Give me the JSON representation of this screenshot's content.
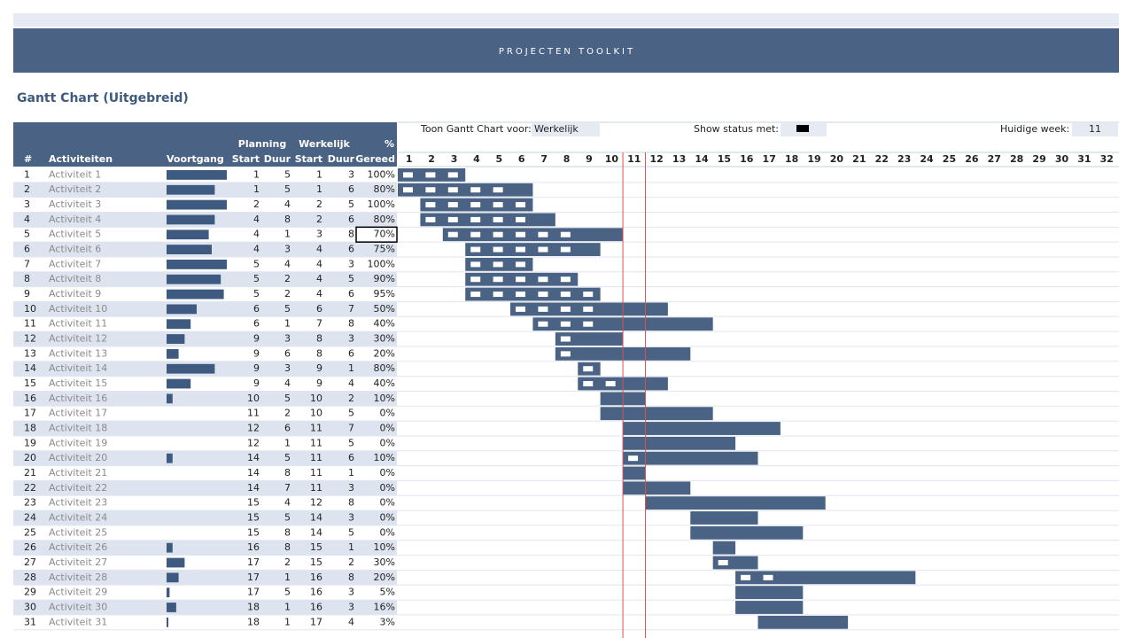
{
  "header": {
    "title": "PROJECTEN TOOLKIT",
    "subtitle": "Gantt Chart (Uitgebreid)"
  },
  "controls": {
    "show_for_label": "Toon Gantt Chart voor:",
    "show_for_value": "Werkelijk",
    "status_label": "Show status met:",
    "week_label": "Huidige week:",
    "current_week": 11
  },
  "table": {
    "group_headers": {
      "planning": "Planning",
      "werkelijk": "Werkelijk",
      "pct": "%"
    },
    "columns": [
      "#",
      "Activiteiten",
      "Voortgang",
      "Start",
      "Duur",
      "Start",
      "Duur",
      "Gereed"
    ],
    "weeks": [
      1,
      2,
      3,
      4,
      5,
      6,
      7,
      8,
      9,
      10,
      11,
      12,
      13,
      14,
      15,
      16,
      17,
      18,
      19,
      20,
      21,
      22,
      23,
      24,
      25,
      26,
      27,
      28,
      29,
      30,
      31,
      32
    ],
    "rows": [
      {
        "n": 1,
        "name": "Activiteit 1",
        "plan_start": 1,
        "plan_duur": 5,
        "start": 1,
        "duur": 3,
        "gereed": 100,
        "gereed_label": "100%"
      },
      {
        "n": 2,
        "name": "Activiteit 2",
        "plan_start": 1,
        "plan_duur": 5,
        "start": 1,
        "duur": 6,
        "gereed": 80,
        "gereed_label": "80%"
      },
      {
        "n": 3,
        "name": "Activiteit 3",
        "plan_start": 2,
        "plan_duur": 4,
        "start": 2,
        "duur": 5,
        "gereed": 100,
        "gereed_label": "100%"
      },
      {
        "n": 4,
        "name": "Activiteit 4",
        "plan_start": 4,
        "plan_duur": 8,
        "start": 2,
        "duur": 6,
        "gereed": 80,
        "gereed_label": "80%"
      },
      {
        "n": 5,
        "name": "Activiteit 5",
        "plan_start": 4,
        "plan_duur": 1,
        "start": 3,
        "duur": 8,
        "gereed": 70,
        "gereed_label": "70%"
      },
      {
        "n": 6,
        "name": "Activiteit 6",
        "plan_start": 4,
        "plan_duur": 3,
        "start": 4,
        "duur": 6,
        "gereed": 75,
        "gereed_label": "75%"
      },
      {
        "n": 7,
        "name": "Activiteit 7",
        "plan_start": 5,
        "plan_duur": 4,
        "start": 4,
        "duur": 3,
        "gereed": 100,
        "gereed_label": "100%"
      },
      {
        "n": 8,
        "name": "Activiteit 8",
        "plan_start": 5,
        "plan_duur": 2,
        "start": 4,
        "duur": 5,
        "gereed": 90,
        "gereed_label": "90%"
      },
      {
        "n": 9,
        "name": "Activiteit 9",
        "plan_start": 5,
        "plan_duur": 2,
        "start": 4,
        "duur": 6,
        "gereed": 95,
        "gereed_label": "95%"
      },
      {
        "n": 10,
        "name": "Activiteit 10",
        "plan_start": 6,
        "plan_duur": 5,
        "start": 6,
        "duur": 7,
        "gereed": 50,
        "gereed_label": "50%"
      },
      {
        "n": 11,
        "name": "Activiteit 11",
        "plan_start": 6,
        "plan_duur": 1,
        "start": 7,
        "duur": 8,
        "gereed": 40,
        "gereed_label": "40%"
      },
      {
        "n": 12,
        "name": "Activiteit 12",
        "plan_start": 9,
        "plan_duur": 3,
        "start": 8,
        "duur": 3,
        "gereed": 30,
        "gereed_label": "30%"
      },
      {
        "n": 13,
        "name": "Activiteit 13",
        "plan_start": 9,
        "plan_duur": 6,
        "start": 8,
        "duur": 6,
        "gereed": 20,
        "gereed_label": "20%"
      },
      {
        "n": 14,
        "name": "Activiteit 14",
        "plan_start": 9,
        "plan_duur": 3,
        "start": 9,
        "duur": 1,
        "gereed": 80,
        "gereed_label": "80%"
      },
      {
        "n": 15,
        "name": "Activiteit 15",
        "plan_start": 9,
        "plan_duur": 4,
        "start": 9,
        "duur": 4,
        "gereed": 40,
        "gereed_label": "40%"
      },
      {
        "n": 16,
        "name": "Activiteit 16",
        "plan_start": 10,
        "plan_duur": 5,
        "start": 10,
        "duur": 2,
        "gereed": 10,
        "gereed_label": "10%"
      },
      {
        "n": 17,
        "name": "Activiteit 17",
        "plan_start": 11,
        "plan_duur": 2,
        "start": 10,
        "duur": 5,
        "gereed": 0,
        "gereed_label": "0%"
      },
      {
        "n": 18,
        "name": "Activiteit 18",
        "plan_start": 12,
        "plan_duur": 6,
        "start": 11,
        "duur": 7,
        "gereed": 0,
        "gereed_label": "0%"
      },
      {
        "n": 19,
        "name": "Activiteit 19",
        "plan_start": 12,
        "plan_duur": 1,
        "start": 11,
        "duur": 5,
        "gereed": 0,
        "gereed_label": "0%"
      },
      {
        "n": 20,
        "name": "Activiteit 20",
        "plan_start": 14,
        "plan_duur": 5,
        "start": 11,
        "duur": 6,
        "gereed": 10,
        "gereed_label": "10%"
      },
      {
        "n": 21,
        "name": "Activiteit 21",
        "plan_start": 14,
        "plan_duur": 8,
        "start": 11,
        "duur": 1,
        "gereed": 0,
        "gereed_label": "0%"
      },
      {
        "n": 22,
        "name": "Activiteit 22",
        "plan_start": 14,
        "plan_duur": 7,
        "start": 11,
        "duur": 3,
        "gereed": 0,
        "gereed_label": "0%"
      },
      {
        "n": 23,
        "name": "Activiteit 23",
        "plan_start": 15,
        "plan_duur": 4,
        "start": 12,
        "duur": 8,
        "gereed": 0,
        "gereed_label": "0%"
      },
      {
        "n": 24,
        "name": "Activiteit 24",
        "plan_start": 15,
        "plan_duur": 5,
        "start": 14,
        "duur": 3,
        "gereed": 0,
        "gereed_label": "0%"
      },
      {
        "n": 25,
        "name": "Activiteit 25",
        "plan_start": 15,
        "plan_duur": 8,
        "start": 14,
        "duur": 5,
        "gereed": 0,
        "gereed_label": "0%"
      },
      {
        "n": 26,
        "name": "Activiteit 26",
        "plan_start": 16,
        "plan_duur": 8,
        "start": 15,
        "duur": 1,
        "gereed": 10,
        "gereed_label": "10%"
      },
      {
        "n": 27,
        "name": "Activiteit 27",
        "plan_start": 17,
        "plan_duur": 2,
        "start": 15,
        "duur": 2,
        "gereed": 30,
        "gereed_label": "30%"
      },
      {
        "n": 28,
        "name": "Activiteit 28",
        "plan_start": 17,
        "plan_duur": 1,
        "start": 16,
        "duur": 8,
        "gereed": 20,
        "gereed_label": "20%"
      },
      {
        "n": 29,
        "name": "Activiteit 29",
        "plan_start": 17,
        "plan_duur": 5,
        "start": 16,
        "duur": 3,
        "gereed": 5,
        "gereed_label": "5%"
      },
      {
        "n": 30,
        "name": "Activiteit 30",
        "plan_start": 18,
        "plan_duur": 1,
        "start": 16,
        "duur": 3,
        "gereed": 16,
        "gereed_label": "16%"
      },
      {
        "n": 31,
        "name": "Activiteit 31",
        "plan_start": 18,
        "plan_duur": 1,
        "start": 17,
        "duur": 4,
        "gereed": 3,
        "gereed_label": "3%"
      }
    ]
  }
}
